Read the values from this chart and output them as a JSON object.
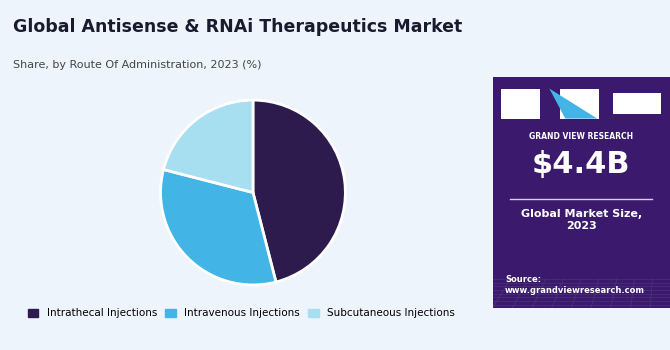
{
  "title": "Global Antisense & RNAi Therapeutics Market",
  "subtitle": "Share, by Route Of Administration, 2023 (%)",
  "pie_labels": [
    "Intrathecal Injections",
    "Intravenous Injections",
    "Subcutaneous Injections"
  ],
  "pie_values": [
    46,
    33,
    21
  ],
  "pie_colors": [
    "#2d1b4e",
    "#42b4e6",
    "#a8dff0"
  ],
  "pie_startangle": 90,
  "bg_color_left": "#eef4fb",
  "bg_color_right": "#3b1a6e",
  "market_size_text": "$4.4B",
  "market_size_label": "Global Market Size,\n2023",
  "source_text": "Source:\nwww.grandviewresearch.com",
  "brand_text": "GRAND VIEW RESEARCH",
  "legend_labels": [
    "Intrathecal Injections",
    "Intravenous Injections",
    "Subcutaneous Injections"
  ],
  "legend_colors": [
    "#2d1b4e",
    "#42b4e6",
    "#a8dff0"
  ]
}
